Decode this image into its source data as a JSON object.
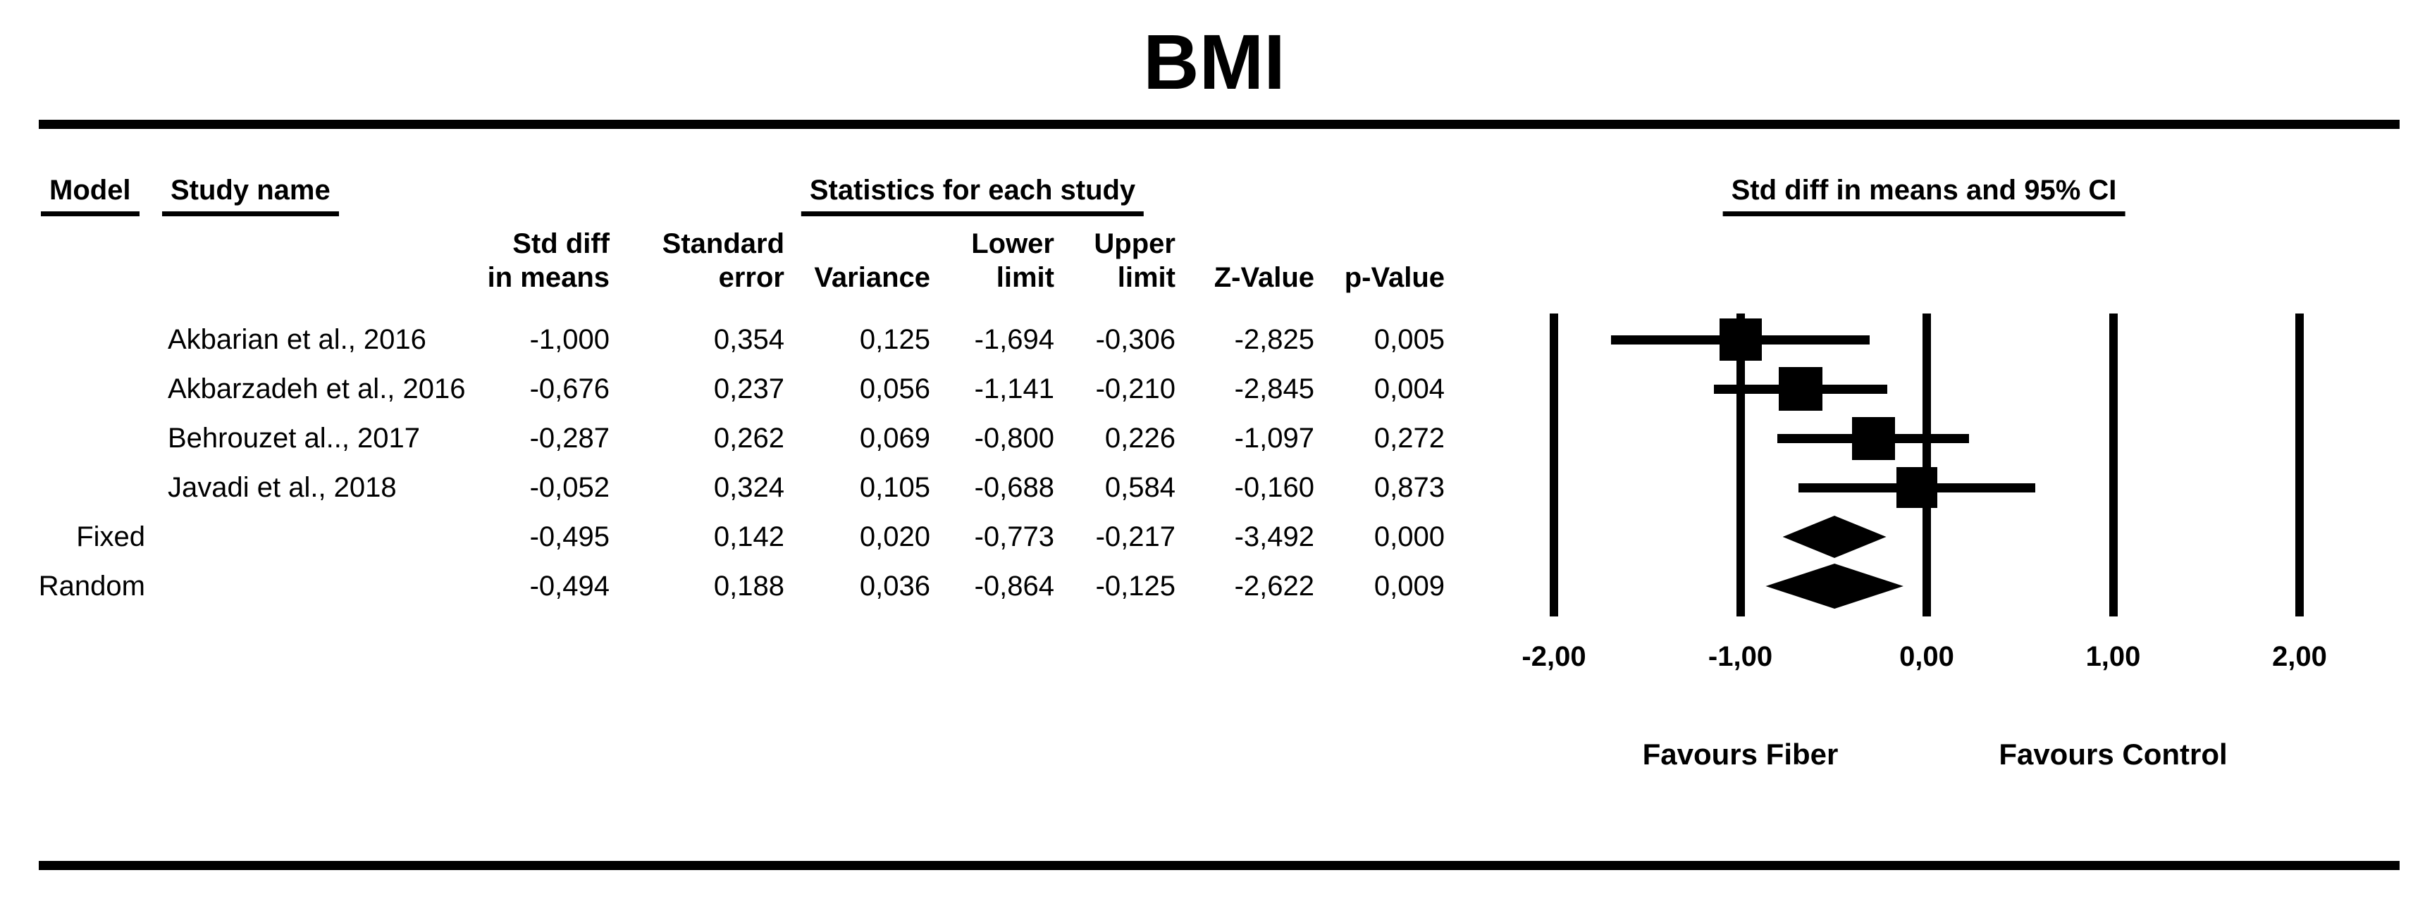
{
  "title": "BMI",
  "headers": {
    "model": "Model",
    "study_name": "Study name",
    "statistics_group": "Statistics for each study",
    "plot_group": "Std diff in means and 95% CI"
  },
  "columns": [
    {
      "line1": "Std diff",
      "line2": "in means"
    },
    {
      "line1": "Standard",
      "line2": "error"
    },
    {
      "line1": "",
      "line2": "Variance"
    },
    {
      "line1": "Lower",
      "line2": "limit"
    },
    {
      "line1": "Upper",
      "line2": "limit"
    },
    {
      "line1": "",
      "line2": "Z-Value"
    },
    {
      "line1": "",
      "line2": "p-Value"
    }
  ],
  "rows": [
    {
      "model": "",
      "study": "Akbarian et al., 2016",
      "values": [
        "-1,000",
        "0,354",
        "0,125",
        "-1,694",
        "-0,306",
        "-2,825",
        "0,005"
      ]
    },
    {
      "model": "",
      "study": "Akbarzadeh et al., 2016",
      "values": [
        "-0,676",
        "0,237",
        "0,056",
        "-1,141",
        "-0,210",
        "-2,845",
        "0,004"
      ]
    },
    {
      "model": "",
      "study": "Behrouzet al.., 2017",
      "values": [
        "-0,287",
        "0,262",
        "0,069",
        "-0,800",
        "0,226",
        "-1,097",
        "0,272"
      ]
    },
    {
      "model": "",
      "study": "Javadi et al., 2018",
      "values": [
        "-0,052",
        "0,324",
        "0,105",
        "-0,688",
        "0,584",
        "-0,160",
        "0,873"
      ]
    },
    {
      "model": "Fixed",
      "study": "",
      "values": [
        "-0,495",
        "0,142",
        "0,020",
        "-0,773",
        "-0,217",
        "-3,492",
        "0,000"
      ]
    },
    {
      "model": "Random",
      "study": "",
      "values": [
        "-0,494",
        "0,188",
        "0,036",
        "-0,864",
        "-0,125",
        "-2,622",
        "0,009"
      ]
    }
  ],
  "chart_data": {
    "type": "forest",
    "title": "BMI",
    "xlabel": "Std diff in means and 95% CI",
    "xlim": [
      -2,
      2
    ],
    "x_ticks": [
      -2,
      -1,
      0,
      1,
      2
    ],
    "x_tick_labels": [
      "-2,00",
      "-1,00",
      "0,00",
      "1,00",
      "2,00"
    ],
    "favours_left": "Favours Fiber",
    "favours_right": "Favours Control",
    "series": [
      {
        "label": "Akbarian et al., 2016",
        "marker": "square",
        "estimate": -1.0,
        "lower": -1.694,
        "upper": -0.306
      },
      {
        "label": "Akbarzadeh et al., 2016",
        "marker": "square",
        "estimate": -0.676,
        "lower": -1.141,
        "upper": -0.21
      },
      {
        "label": "Behrouzet al.., 2017",
        "marker": "square",
        "estimate": -0.287,
        "lower": -0.8,
        "upper": 0.226
      },
      {
        "label": "Javadi et al., 2018",
        "marker": "square",
        "estimate": -0.052,
        "lower": -0.688,
        "upper": 0.584
      },
      {
        "label": "Fixed",
        "marker": "diamond",
        "estimate": -0.495,
        "lower": -0.773,
        "upper": -0.217
      },
      {
        "label": "Random",
        "marker": "diamond",
        "estimate": -0.494,
        "lower": -0.864,
        "upper": -0.125
      }
    ],
    "square_sizes": [
      60,
      62,
      61,
      58
    ],
    "diamond_heights": [
      60,
      64
    ]
  }
}
